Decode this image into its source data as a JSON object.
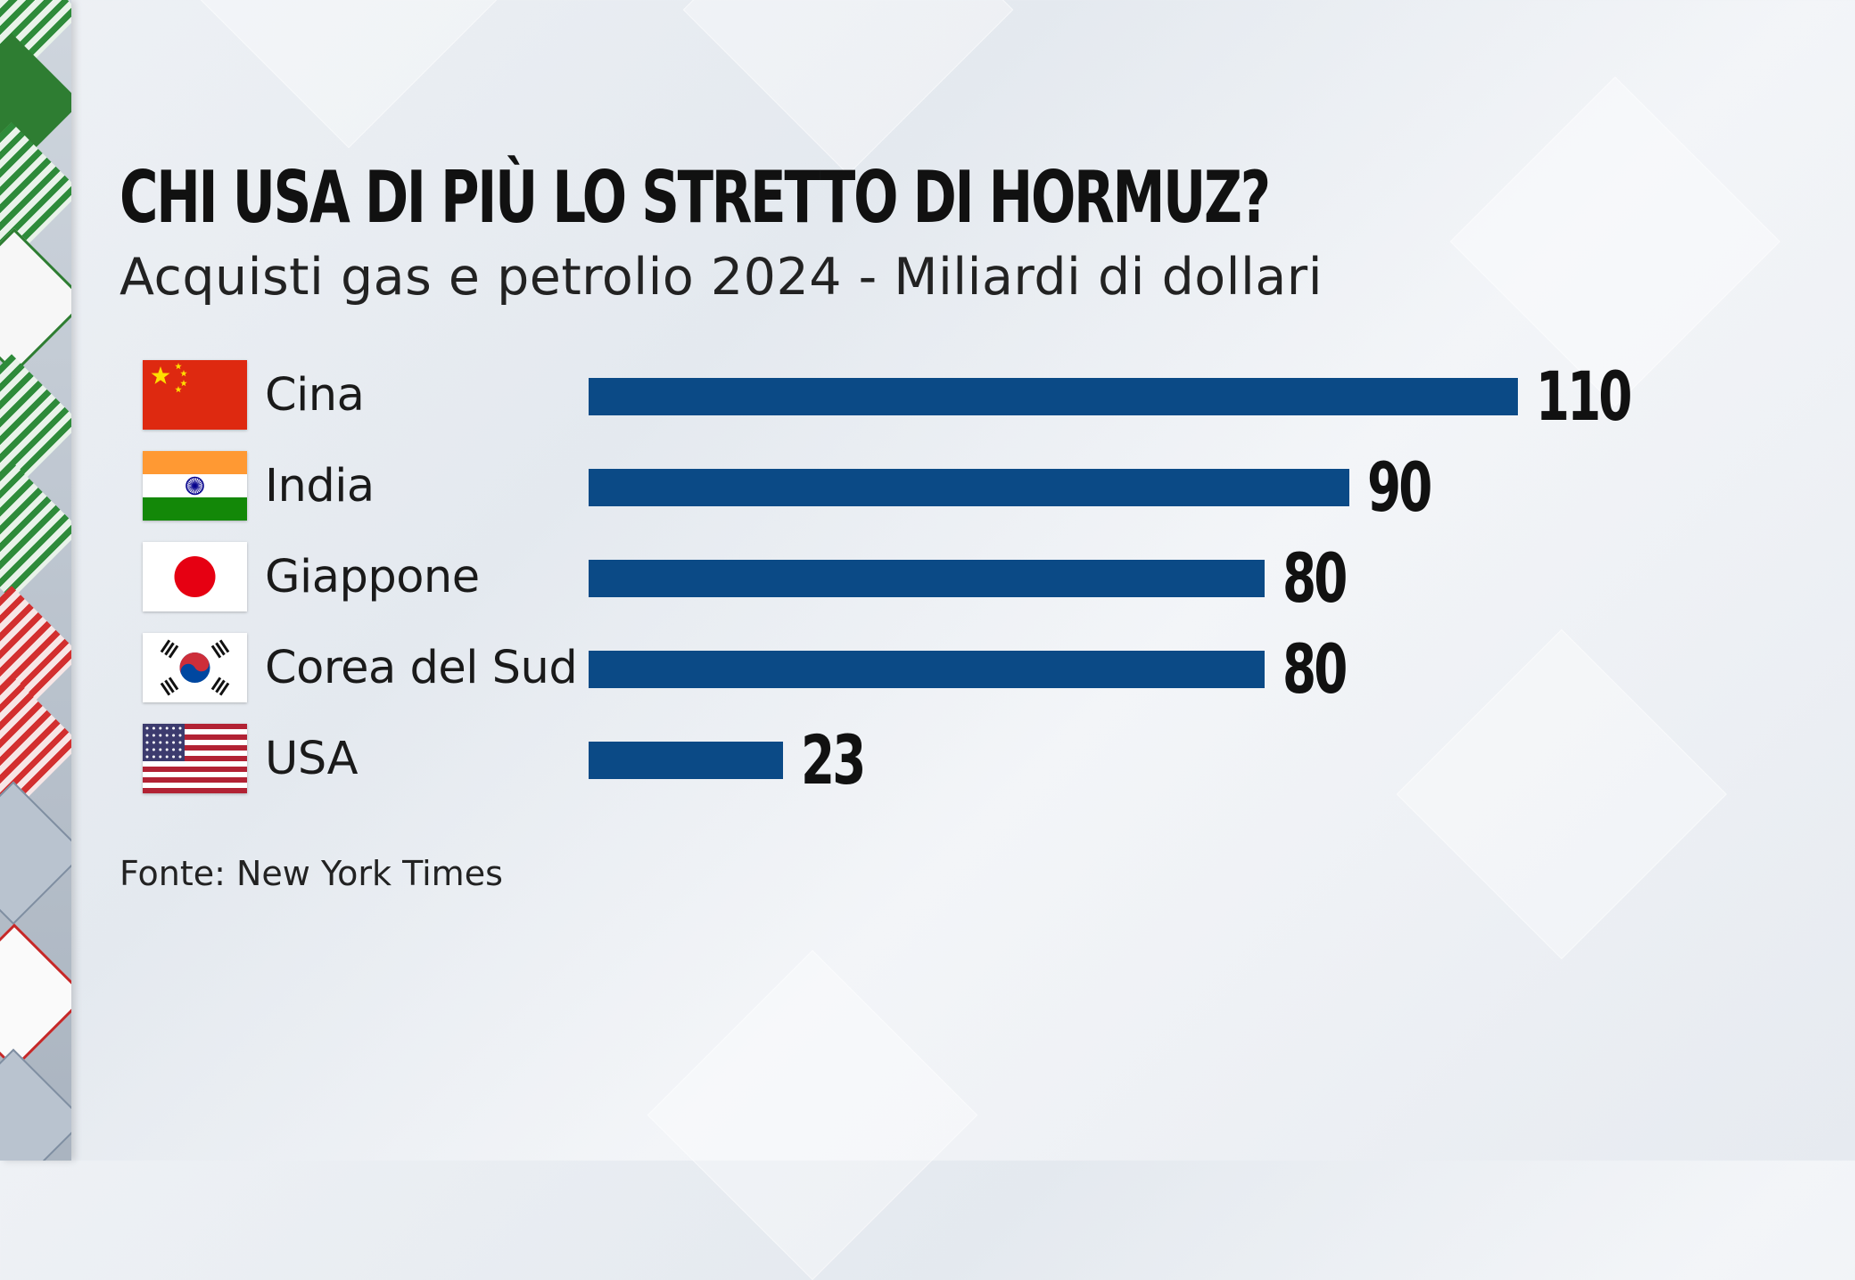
{
  "colors": {
    "bar": "#0b4a86",
    "title": "#111111"
  },
  "chart_data": {
    "type": "bar",
    "orientation": "horizontal",
    "title": "CHI USA DI PIÙ LO STRETTO DI HORMUZ?",
    "subtitle": "Acquisti gas e petrolio 2024 - Miliardi di dollari",
    "categories": [
      "Cina",
      "India",
      "Giappone",
      "Corea del Sud",
      "USA"
    ],
    "values": [
      110,
      90,
      80,
      80,
      23
    ],
    "value_labels": [
      "110",
      "90",
      "80",
      "80",
      "23"
    ],
    "flags": [
      "china-flag-icon",
      "india-flag-icon",
      "japan-flag-icon",
      "south-korea-flag-icon",
      "usa-flag-icon"
    ],
    "xlim": [
      0,
      110
    ],
    "grid": false,
    "source": "Fonte: New York Times"
  }
}
